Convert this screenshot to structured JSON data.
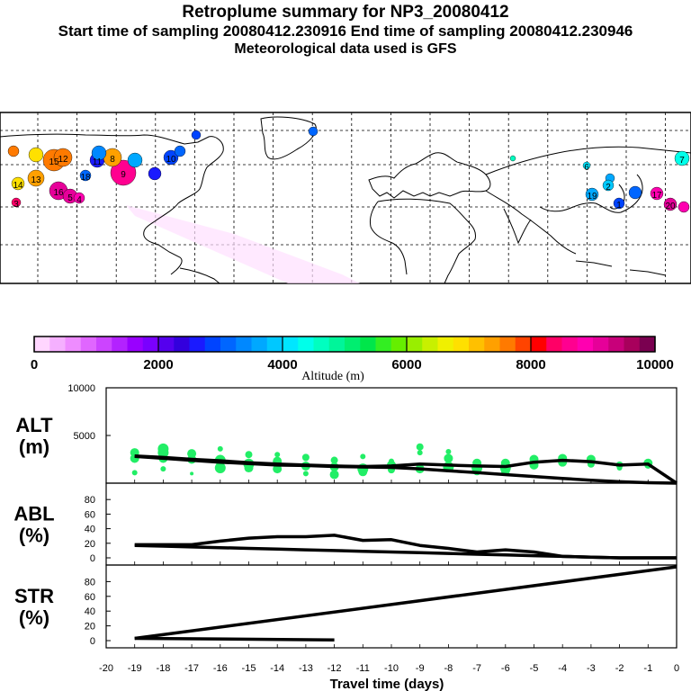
{
  "header": {
    "title": "Retroplume summary for NP3_20080412",
    "sampling": "Start time of sampling 20080412.230916     End time of sampling 20080412.230946",
    "met": "Meteorological data used is GFS"
  },
  "colors": {
    "line": "#000000",
    "marker": "#22ee66",
    "altitude_scale": [
      "#ffd6ff",
      "#f5b0ff",
      "#ee8cff",
      "#e066ff",
      "#cc44ff",
      "#b322ff",
      "#9900ff",
      "#7a00ff",
      "#5500ee",
      "#3300dd",
      "#1a1aff",
      "#0044ff",
      "#0066ff",
      "#0088ff",
      "#00a8ff",
      "#00c8ff",
      "#00e6ff",
      "#00ffea",
      "#00ffc0",
      "#00f59a",
      "#00ee70",
      "#00e64a",
      "#33ee22",
      "#66ee00",
      "#99ee00",
      "#c8f000",
      "#f0f000",
      "#ffe000",
      "#ffc000",
      "#ffa000",
      "#ff7a00",
      "#ff4400",
      "#ff0000",
      "#ff0066",
      "#ff0090",
      "#ff00b0",
      "#e60099",
      "#c8007a",
      "#a8005c",
      "#7a0050"
    ]
  },
  "map": {
    "labels": [
      "14",
      "13",
      "15",
      "12",
      "16",
      "5",
      "4",
      "3",
      "18",
      "11",
      "9",
      "8",
      "10",
      "7",
      "6",
      "2",
      "19",
      "17",
      "20",
      "1"
    ]
  },
  "colorbar": {
    "ticks": [
      "0",
      "2000",
      "4000",
      "6000",
      "8000",
      "10000"
    ],
    "label": "Altitude (m)"
  },
  "chart_data": [
    {
      "type": "line",
      "panel": "ALT",
      "ylabel": "ALT\n(m)",
      "ylabel_lines": [
        "ALT",
        "(m)"
      ],
      "ylim": [
        0,
        10000
      ],
      "yticks": [
        "10000",
        "5000"
      ],
      "xlim": [
        -20,
        0
      ],
      "x": [
        -19,
        -18,
        -17,
        -16,
        -15,
        -14,
        -13,
        -12,
        -11,
        -10,
        -9,
        -8,
        -7,
        -6,
        -5,
        -4,
        -3,
        -2,
        -1
      ],
      "series": [
        {
          "name": "upper",
          "values": [
            2850,
            2700,
            2500,
            2350,
            2150,
            2000,
            1900,
            1800,
            1750,
            1800,
            2000,
            1900,
            1800,
            1750,
            2200,
            2400,
            2250,
            1900,
            2000
          ]
        },
        {
          "name": "lower",
          "values": [
            2800,
            2600,
            2400,
            2200,
            2050,
            1900,
            1850,
            1750,
            1700,
            1650,
            1500,
            1300,
            1100,
            900,
            700,
            500,
            300,
            150,
            50
          ]
        }
      ],
      "scatter": [
        {
          "x": -19,
          "y": 3200,
          "r": 5
        },
        {
          "x": -19,
          "y": 2600,
          "r": 5
        },
        {
          "x": -19,
          "y": 1100,
          "r": 3
        },
        {
          "x": -18,
          "y": 3600,
          "r": 6
        },
        {
          "x": -18,
          "y": 3200,
          "r": 6
        },
        {
          "x": -18,
          "y": 2600,
          "r": 5
        },
        {
          "x": -18,
          "y": 1500,
          "r": 3
        },
        {
          "x": -17,
          "y": 3100,
          "r": 5
        },
        {
          "x": -17,
          "y": 2500,
          "r": 5
        },
        {
          "x": -17,
          "y": 1000,
          "r": 2
        },
        {
          "x": -16,
          "y": 3600,
          "r": 3
        },
        {
          "x": -16,
          "y": 2400,
          "r": 6
        },
        {
          "x": -16,
          "y": 1600,
          "r": 6
        },
        {
          "x": -15,
          "y": 3000,
          "r": 4
        },
        {
          "x": -15,
          "y": 2000,
          "r": 6
        },
        {
          "x": -15,
          "y": 1600,
          "r": 5
        },
        {
          "x": -14,
          "y": 3000,
          "r": 3
        },
        {
          "x": -14,
          "y": 2300,
          "r": 5
        },
        {
          "x": -14,
          "y": 1500,
          "r": 5
        },
        {
          "x": -13,
          "y": 2700,
          "r": 4
        },
        {
          "x": -13,
          "y": 1800,
          "r": 5
        },
        {
          "x": -13,
          "y": 1000,
          "r": 3
        },
        {
          "x": -12,
          "y": 2400,
          "r": 4
        },
        {
          "x": -12,
          "y": 1700,
          "r": 5
        },
        {
          "x": -12,
          "y": 900,
          "r": 5
        },
        {
          "x": -11,
          "y": 2800,
          "r": 3
        },
        {
          "x": -11,
          "y": 1500,
          "r": 6
        },
        {
          "x": -11,
          "y": 1200,
          "r": 5
        },
        {
          "x": -10,
          "y": 2300,
          "r": 3
        },
        {
          "x": -10,
          "y": 1900,
          "r": 5
        },
        {
          "x": -10,
          "y": 1400,
          "r": 4
        },
        {
          "x": -9,
          "y": 3800,
          "r": 4
        },
        {
          "x": -9,
          "y": 3200,
          "r": 3
        },
        {
          "x": -9,
          "y": 1500,
          "r": 5
        },
        {
          "x": -8,
          "y": 3300,
          "r": 3
        },
        {
          "x": -8,
          "y": 2600,
          "r": 5
        },
        {
          "x": -8,
          "y": 1700,
          "r": 6
        },
        {
          "x": -7,
          "y": 2100,
          "r": 5
        },
        {
          "x": -7,
          "y": 1600,
          "r": 6
        },
        {
          "x": -7,
          "y": 1300,
          "r": 5
        },
        {
          "x": -6,
          "y": 2100,
          "r": 5
        },
        {
          "x": -6,
          "y": 1600,
          "r": 6
        },
        {
          "x": -6,
          "y": 1300,
          "r": 5
        },
        {
          "x": -5,
          "y": 2500,
          "r": 5
        },
        {
          "x": -5,
          "y": 1900,
          "r": 5
        },
        {
          "x": -4,
          "y": 2600,
          "r": 5
        },
        {
          "x": -4,
          "y": 2200,
          "r": 5
        },
        {
          "x": -3,
          "y": 2500,
          "r": 5
        },
        {
          "x": -3,
          "y": 2000,
          "r": 4
        },
        {
          "x": -2,
          "y": 1900,
          "r": 4
        },
        {
          "x": -2,
          "y": 1600,
          "r": 3
        },
        {
          "x": -1,
          "y": 2100,
          "r": 5
        },
        {
          "x": -1,
          "y": 1900,
          "r": 4
        }
      ]
    },
    {
      "type": "line",
      "panel": "ABL",
      "ylabel": "ABL\n(%)",
      "ylabel_lines": [
        "ABL",
        "(%)"
      ],
      "ylim": [
        0,
        100
      ],
      "yticks": [
        "80",
        "60",
        "40",
        "20",
        "0"
      ],
      "xlim": [
        -20,
        0
      ],
      "x": [
        -19,
        -18,
        -17,
        -16,
        -15,
        -14,
        -13,
        -12,
        -11,
        -10,
        -9,
        -8,
        -7,
        -6,
        -5,
        -4,
        -3,
        -2,
        -1
      ],
      "series": [
        {
          "name": "upper",
          "values": [
            18,
            18,
            18,
            23,
            27,
            29,
            29,
            31,
            24,
            25,
            17,
            13,
            8,
            11,
            8,
            2,
            1,
            0,
            0
          ]
        },
        {
          "name": "lower",
          "values": [
            17,
            16,
            15,
            14,
            13,
            12,
            11,
            10,
            9,
            8,
            7,
            6,
            5,
            4,
            3,
            2,
            1,
            0,
            0
          ]
        }
      ]
    },
    {
      "type": "line",
      "panel": "STR",
      "ylabel": "STR\n(%)",
      "ylabel_lines": [
        "STR",
        "(%)"
      ],
      "ylim": [
        0,
        100
      ],
      "yticks": [
        "80",
        "60",
        "40",
        "20",
        "0"
      ],
      "xlim": [
        -20,
        0
      ],
      "xlabel": "Travel time (days)",
      "xticks": [
        "-20",
        "-19",
        "-18",
        "-17",
        "-16",
        "-15",
        "-14",
        "-13",
        "-12",
        "-11",
        "-10",
        "-9",
        "-8",
        "-7",
        "-6",
        "-5",
        "-4",
        "-3",
        "-2",
        "-1",
        "0"
      ],
      "series": [
        {
          "name": "rising",
          "x": [
            -19,
            0
          ],
          "values": [
            3,
            100
          ]
        },
        {
          "name": "flat",
          "x": [
            -19,
            -12
          ],
          "values": [
            3,
            1
          ]
        }
      ]
    }
  ]
}
